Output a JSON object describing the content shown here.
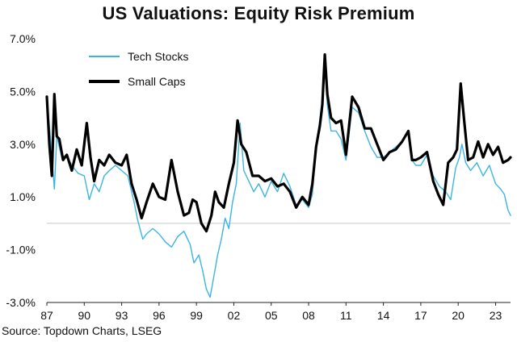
{
  "chart_data": {
    "type": "line",
    "title": "US Valuations: Equity Risk Premium",
    "xlabel": "",
    "ylabel": "",
    "source": "Source: Topdown Charts, LSEG",
    "xlim": [
      1987.0,
      2024.2
    ],
    "ylim": [
      -3.0,
      7.0
    ],
    "x_ticks": [
      1987,
      1990,
      1993,
      1996,
      1999,
      2002,
      2005,
      2008,
      2011,
      2014,
      2017,
      2020,
      2023
    ],
    "x_tick_labels": [
      "87",
      "90",
      "93",
      "96",
      "99",
      "02",
      "05",
      "08",
      "11",
      "14",
      "17",
      "20",
      "23"
    ],
    "y_ticks": [
      -3,
      -1,
      1,
      3,
      5,
      7
    ],
    "y_tick_labels": [
      "-3.0%",
      "-1.0%",
      "1.0%",
      "3.0%",
      "5.0%",
      "7.0%"
    ],
    "zero_line": true,
    "grid": false,
    "legend_position": "top-left",
    "series": [
      {
        "name": "Tech Stocks",
        "color": "#3cb4e0",
        "x": [
          1987.0,
          1987.3,
          1987.6,
          1987.8,
          1988.2,
          1988.6,
          1989.0,
          1989.5,
          1990.0,
          1990.4,
          1990.8,
          1991.2,
          1991.6,
          1992.0,
          1992.5,
          1993.0,
          1993.5,
          1994.0,
          1994.3,
          1994.7,
          1995.0,
          1995.5,
          1996.0,
          1996.5,
          1997.0,
          1997.5,
          1998.0,
          1998.5,
          1998.8,
          1999.2,
          1999.5,
          1999.8,
          2000.1,
          2000.4,
          2000.7,
          2001.0,
          2001.3,
          2001.6,
          2001.9,
          2002.2,
          2002.5,
          2002.8,
          2003.2,
          2003.6,
          2004.0,
          2004.5,
          2005.0,
          2005.5,
          2006.0,
          2006.5,
          2007.0,
          2007.5,
          2008.0,
          2008.3,
          2008.6,
          2008.9,
          2009.1,
          2009.3,
          2009.5,
          2009.8,
          2010.2,
          2010.6,
          2011.0,
          2011.5,
          2012.0,
          2012.5,
          2013.0,
          2013.5,
          2014.0,
          2014.5,
          2015.0,
          2015.5,
          2016.0,
          2016.3,
          2016.6,
          2017.0,
          2017.5,
          2018.0,
          2018.5,
          2019.0,
          2019.4,
          2019.8,
          2020.1,
          2020.3,
          2020.6,
          2021.0,
          2021.5,
          2022.0,
          2022.5,
          2023.0,
          2023.4,
          2023.7,
          2024.0,
          2024.2
        ],
        "values": [
          4.8,
          3.2,
          1.3,
          3.3,
          2.5,
          2.6,
          2.2,
          1.9,
          1.8,
          0.9,
          1.5,
          1.2,
          1.8,
          2.0,
          2.2,
          2.0,
          1.8,
          0.8,
          0.1,
          -0.6,
          -0.4,
          -0.2,
          -0.4,
          -0.7,
          -0.9,
          -0.5,
          -0.3,
          -0.8,
          -1.5,
          -1.2,
          -1.8,
          -2.5,
          -2.8,
          -2.0,
          -1.2,
          -0.6,
          0.2,
          -0.2,
          0.8,
          1.5,
          3.8,
          2.0,
          1.6,
          1.2,
          1.5,
          1.0,
          1.6,
          1.2,
          1.9,
          1.4,
          0.7,
          0.9,
          0.6,
          1.1,
          3.0,
          3.5,
          4.2,
          6.0,
          4.5,
          3.5,
          3.5,
          3.2,
          2.4,
          4.4,
          4.2,
          3.5,
          2.9,
          2.5,
          2.5,
          2.7,
          2.9,
          3.1,
          3.5,
          2.4,
          2.2,
          2.2,
          2.6,
          1.8,
          1.4,
          1.2,
          0.9,
          2.1,
          2.5,
          3.0,
          2.3,
          2.0,
          2.3,
          1.8,
          2.2,
          1.5,
          1.3,
          1.1,
          0.5,
          0.3
        ]
      },
      {
        "name": "Small Caps",
        "color": "#000000",
        "x": [
          1987.0,
          1987.2,
          1987.4,
          1987.6,
          1987.8,
          1988.0,
          1988.3,
          1988.6,
          1989.0,
          1989.4,
          1989.8,
          1990.2,
          1990.5,
          1990.8,
          1991.2,
          1991.6,
          1992.0,
          1992.5,
          1993.0,
          1993.4,
          1993.8,
          1994.2,
          1994.6,
          1995.0,
          1995.5,
          1996.0,
          1996.5,
          1997.0,
          1997.5,
          1998.0,
          1998.4,
          1998.7,
          1999.0,
          1999.4,
          1999.8,
          2000.2,
          2000.5,
          2000.8,
          2001.2,
          2001.6,
          2002.0,
          2002.3,
          2002.6,
          2003.0,
          2003.5,
          2004.0,
          2004.5,
          2005.0,
          2005.5,
          2006.0,
          2006.5,
          2007.0,
          2007.5,
          2008.0,
          2008.3,
          2008.6,
          2008.9,
          2009.1,
          2009.3,
          2009.5,
          2009.8,
          2010.2,
          2010.6,
          2011.0,
          2011.5,
          2012.0,
          2012.5,
          2013.0,
          2013.5,
          2014.0,
          2014.5,
          2015.0,
          2015.5,
          2016.0,
          2016.3,
          2016.6,
          2017.0,
          2017.5,
          2018.0,
          2018.4,
          2018.8,
          2019.2,
          2019.6,
          2019.9,
          2020.2,
          2020.5,
          2020.8,
          2021.2,
          2021.6,
          2022.0,
          2022.4,
          2022.8,
          2023.2,
          2023.6,
          2024.0,
          2024.2
        ],
        "values": [
          4.8,
          3.0,
          1.8,
          4.9,
          3.3,
          3.2,
          2.4,
          2.6,
          2.0,
          2.8,
          2.2,
          3.8,
          2.5,
          1.6,
          2.4,
          2.2,
          2.6,
          2.3,
          2.2,
          2.6,
          1.5,
          0.9,
          0.2,
          0.8,
          1.5,
          1.0,
          0.9,
          2.4,
          1.2,
          0.3,
          0.4,
          0.9,
          0.8,
          0.0,
          -0.3,
          0.3,
          1.2,
          0.8,
          0.6,
          1.5,
          2.3,
          3.9,
          3.0,
          2.7,
          1.8,
          1.8,
          1.6,
          1.7,
          1.4,
          1.5,
          1.2,
          0.6,
          1.0,
          0.7,
          1.5,
          2.9,
          3.7,
          4.5,
          6.4,
          4.9,
          4.0,
          3.8,
          3.9,
          2.6,
          4.8,
          4.4,
          3.6,
          3.6,
          3.0,
          2.4,
          2.7,
          2.8,
          3.1,
          3.5,
          2.4,
          2.4,
          2.5,
          2.7,
          1.6,
          1.1,
          0.7,
          2.3,
          2.5,
          2.8,
          5.3,
          3.8,
          2.4,
          2.5,
          3.1,
          2.5,
          3.0,
          2.6,
          2.9,
          2.3,
          2.4,
          2.5
        ]
      }
    ]
  }
}
